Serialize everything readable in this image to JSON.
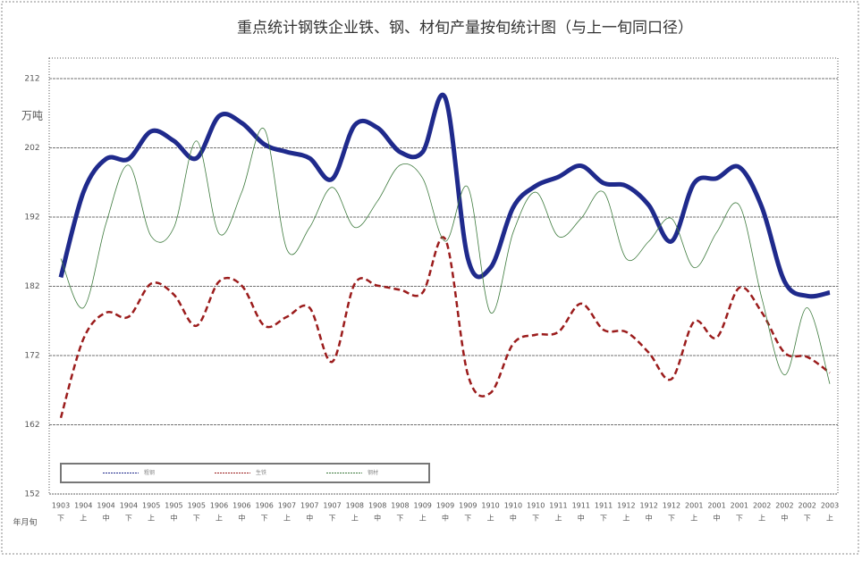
{
  "chart_data": {
    "type": "line",
    "title": "重点统计钢铁企业铁、钢、材旬产量按旬统计图（与上一旬同口径）",
    "y_label": "万吨",
    "x_label": "年月旬",
    "categories": [
      [
        "1903",
        "下"
      ],
      [
        "1904",
        "上"
      ],
      [
        "1904",
        "中"
      ],
      [
        "1904",
        "下"
      ],
      [
        "1905",
        "上"
      ],
      [
        "1905",
        "中"
      ],
      [
        "1905",
        "下"
      ],
      [
        "1906",
        "上"
      ],
      [
        "1906",
        "中"
      ],
      [
        "1906",
        "下"
      ],
      [
        "1907",
        "上"
      ],
      [
        "1907",
        "中"
      ],
      [
        "1907",
        "下"
      ],
      [
        "1908",
        "上"
      ],
      [
        "1908",
        "中"
      ],
      [
        "1908",
        "下"
      ],
      [
        "1909",
        "上"
      ],
      [
        "1909",
        "中"
      ],
      [
        "1909",
        "下"
      ],
      [
        "1910",
        "上"
      ],
      [
        "1910",
        "中"
      ],
      [
        "1910",
        "下"
      ],
      [
        "1911",
        "上"
      ],
      [
        "1911",
        "中"
      ],
      [
        "1911",
        "下"
      ],
      [
        "1912",
        "上"
      ],
      [
        "1912",
        "中"
      ],
      [
        "1912",
        "下"
      ],
      [
        "2001",
        "上"
      ],
      [
        "2001",
        "中"
      ],
      [
        "2001",
        "下"
      ],
      [
        "2002",
        "上"
      ],
      [
        "2002",
        "中"
      ],
      [
        "2002",
        "下"
      ],
      [
        "2003",
        "上"
      ]
    ],
    "series": [
      {
        "name": "粗钢",
        "color": "#1f2a8c",
        "width": 5,
        "dash": "none",
        "values": [
          183.3,
          195.6,
          200.4,
          200.4,
          204.4,
          203.0,
          200.5,
          206.6,
          205.6,
          202.5,
          201.4,
          200.5,
          197.5,
          205.3,
          204.9,
          201.4,
          201.4,
          209.2,
          186.0,
          184.7,
          193.4,
          196.5,
          197.8,
          199.4,
          196.9,
          196.5,
          193.7,
          188.5,
          196.9,
          197.6,
          199.2,
          193.4,
          182.7,
          180.6,
          181.1
        ]
      },
      {
        "name": "生铁",
        "color": "#9b1c1c",
        "width": 2.5,
        "dash": "7,4",
        "values": [
          163.0,
          174.4,
          178.2,
          177.6,
          182.4,
          180.8,
          176.3,
          182.7,
          182.1,
          176.3,
          177.6,
          178.9,
          171.1,
          182.4,
          182.1,
          181.5,
          181.1,
          188.8,
          169.2,
          166.6,
          173.7,
          175.0,
          175.4,
          179.5,
          175.7,
          175.4,
          172.4,
          168.6,
          176.9,
          174.6,
          181.8,
          178.2,
          172.4,
          171.8,
          169.5
        ]
      },
      {
        "name": "钢材",
        "color": "#3d7a3d",
        "width": 0.8,
        "dash": "none",
        "values": [
          186.0,
          178.9,
          191.1,
          199.5,
          189.2,
          190.5,
          203.0,
          189.6,
          195.6,
          204.7,
          187.3,
          190.5,
          196.3,
          190.5,
          194.3,
          199.5,
          197.6,
          188.5,
          196.3,
          178.2,
          189.8,
          195.6,
          189.2,
          191.8,
          195.6,
          186.0,
          188.5,
          191.8,
          184.7,
          189.8,
          193.7,
          180.2,
          169.2,
          178.9,
          167.9
        ]
      }
    ],
    "ylim": [
      152,
      212
    ],
    "yticks": [
      152,
      162,
      172,
      182,
      192,
      202,
      212
    ],
    "grid": true
  }
}
